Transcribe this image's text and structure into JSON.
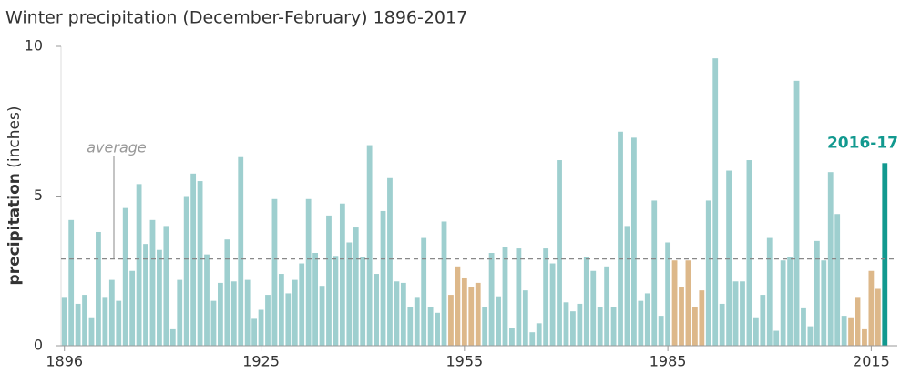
{
  "chart_data": {
    "type": "bar",
    "title": "Winter precipitation (December-February) 1896-2017",
    "y_label": "precipitation",
    "y_label_unit": "(inches)",
    "average_label": "average",
    "average": 2.9,
    "highlight_label": "2016-17",
    "highlight_color": "#12998f",
    "x": [
      1896,
      1897,
      1898,
      1899,
      1900,
      1901,
      1902,
      1903,
      1904,
      1905,
      1906,
      1907,
      1908,
      1909,
      1910,
      1911,
      1912,
      1913,
      1914,
      1915,
      1916,
      1917,
      1918,
      1919,
      1920,
      1921,
      1922,
      1923,
      1924,
      1925,
      1926,
      1927,
      1928,
      1929,
      1930,
      1931,
      1932,
      1933,
      1934,
      1935,
      1936,
      1937,
      1938,
      1939,
      1940,
      1941,
      1942,
      1943,
      1944,
      1945,
      1946,
      1947,
      1948,
      1949,
      1950,
      1951,
      1952,
      1953,
      1954,
      1955,
      1956,
      1957,
      1958,
      1959,
      1960,
      1961,
      1962,
      1963,
      1964,
      1965,
      1966,
      1967,
      1968,
      1969,
      1970,
      1971,
      1972,
      1973,
      1974,
      1975,
      1976,
      1977,
      1978,
      1979,
      1980,
      1981,
      1982,
      1983,
      1984,
      1985,
      1986,
      1987,
      1988,
      1989,
      1990,
      1991,
      1992,
      1993,
      1994,
      1995,
      1996,
      1997,
      1998,
      1999,
      2000,
      2001,
      2002,
      2003,
      2004,
      2005,
      2006,
      2007,
      2008,
      2009,
      2010,
      2011,
      2012,
      2013,
      2014,
      2015,
      2016,
      2017
    ],
    "values": [
      1.6,
      4.2,
      1.4,
      1.7,
      0.95,
      3.8,
      1.6,
      2.2,
      1.5,
      4.6,
      2.5,
      5.4,
      3.4,
      4.2,
      3.2,
      4.0,
      0.55,
      2.2,
      5.0,
      5.75,
      5.5,
      3.05,
      1.5,
      2.1,
      3.55,
      2.15,
      6.3,
      2.2,
      0.9,
      1.2,
      1.7,
      4.9,
      2.4,
      1.75,
      2.2,
      2.75,
      4.9,
      3.1,
      2.0,
      4.35,
      3.0,
      4.75,
      3.45,
      3.95,
      2.95,
      6.7,
      2.4,
      4.5,
      5.6,
      2.15,
      2.1,
      1.3,
      1.6,
      3.6,
      1.3,
      1.1,
      4.15,
      1.7,
      2.65,
      2.25,
      1.95,
      2.1,
      1.3,
      3.1,
      1.65,
      3.3,
      0.6,
      3.25,
      1.85,
      0.45,
      0.75,
      3.25,
      2.75,
      6.2,
      1.45,
      1.15,
      1.4,
      2.95,
      2.5,
      1.3,
      2.65,
      1.3,
      7.15,
      4.0,
      6.95,
      1.5,
      1.75,
      4.85,
      1.0,
      3.45,
      2.85,
      1.95,
      2.85,
      1.3,
      1.85,
      4.85,
      9.6,
      1.4,
      5.85,
      2.15,
      2.15,
      6.2,
      0.95,
      1.7,
      3.6,
      0.5,
      2.85,
      2.95,
      8.85,
      1.25,
      0.65,
      3.5,
      2.85,
      5.8,
      4.4,
      1.0,
      0.95,
      1.6,
      0.55,
      2.5,
      1.9,
      6.1
    ],
    "colors": [
      "#9ecfcf",
      "#9ecfcf",
      "#9ecfcf",
      "#9ecfcf",
      "#9ecfcf",
      "#9ecfcf",
      "#9ecfcf",
      "#9ecfcf",
      "#9ecfcf",
      "#9ecfcf",
      "#9ecfcf",
      "#9ecfcf",
      "#9ecfcf",
      "#9ecfcf",
      "#9ecfcf",
      "#9ecfcf",
      "#9ecfcf",
      "#9ecfcf",
      "#9ecfcf",
      "#9ecfcf",
      "#9ecfcf",
      "#9ecfcf",
      "#9ecfcf",
      "#9ecfcf",
      "#9ecfcf",
      "#9ecfcf",
      "#9ecfcf",
      "#9ecfcf",
      "#9ecfcf",
      "#9ecfcf",
      "#9ecfcf",
      "#9ecfcf",
      "#9ecfcf",
      "#9ecfcf",
      "#9ecfcf",
      "#9ecfcf",
      "#9ecfcf",
      "#9ecfcf",
      "#9ecfcf",
      "#9ecfcf",
      "#9ecfcf",
      "#9ecfcf",
      "#9ecfcf",
      "#9ecfcf",
      "#9ecfcf",
      "#9ecfcf",
      "#9ecfcf",
      "#9ecfcf",
      "#9ecfcf",
      "#9ecfcf",
      "#9ecfcf",
      "#9ecfcf",
      "#9ecfcf",
      "#9ecfcf",
      "#9ecfcf",
      "#9ecfcf",
      "#9ecfcf",
      "#ddb88a",
      "#ddb88a",
      "#ddb88a",
      "#ddb88a",
      "#ddb88a",
      "#9ecfcf",
      "#9ecfcf",
      "#9ecfcf",
      "#9ecfcf",
      "#9ecfcf",
      "#9ecfcf",
      "#9ecfcf",
      "#9ecfcf",
      "#9ecfcf",
      "#9ecfcf",
      "#9ecfcf",
      "#9ecfcf",
      "#9ecfcf",
      "#9ecfcf",
      "#9ecfcf",
      "#9ecfcf",
      "#9ecfcf",
      "#9ecfcf",
      "#9ecfcf",
      "#9ecfcf",
      "#9ecfcf",
      "#9ecfcf",
      "#9ecfcf",
      "#9ecfcf",
      "#9ecfcf",
      "#9ecfcf",
      "#9ecfcf",
      "#9ecfcf",
      "#ddb88a",
      "#ddb88a",
      "#ddb88a",
      "#ddb88a",
      "#ddb88a",
      "#9ecfcf",
      "#9ecfcf",
      "#9ecfcf",
      "#9ecfcf",
      "#9ecfcf",
      "#9ecfcf",
      "#9ecfcf",
      "#9ecfcf",
      "#9ecfcf",
      "#9ecfcf",
      "#9ecfcf",
      "#9ecfcf",
      "#9ecfcf",
      "#9ecfcf",
      "#9ecfcf",
      "#9ecfcf",
      "#9ecfcf",
      "#9ecfcf",
      "#9ecfcf",
      "#9ecfcf",
      "#9ecfcf",
      "#ddb88a",
      "#ddb88a",
      "#ddb88a",
      "#ddb88a",
      "#ddb88a",
      "#12998f"
    ],
    "xlim": [
      1895.5,
      2017.5
    ],
    "xticks": [
      1896,
      1925,
      1955,
      1985,
      2015
    ],
    "ylim": [
      0,
      10
    ],
    "yticks": [
      0,
      5,
      10
    ]
  }
}
